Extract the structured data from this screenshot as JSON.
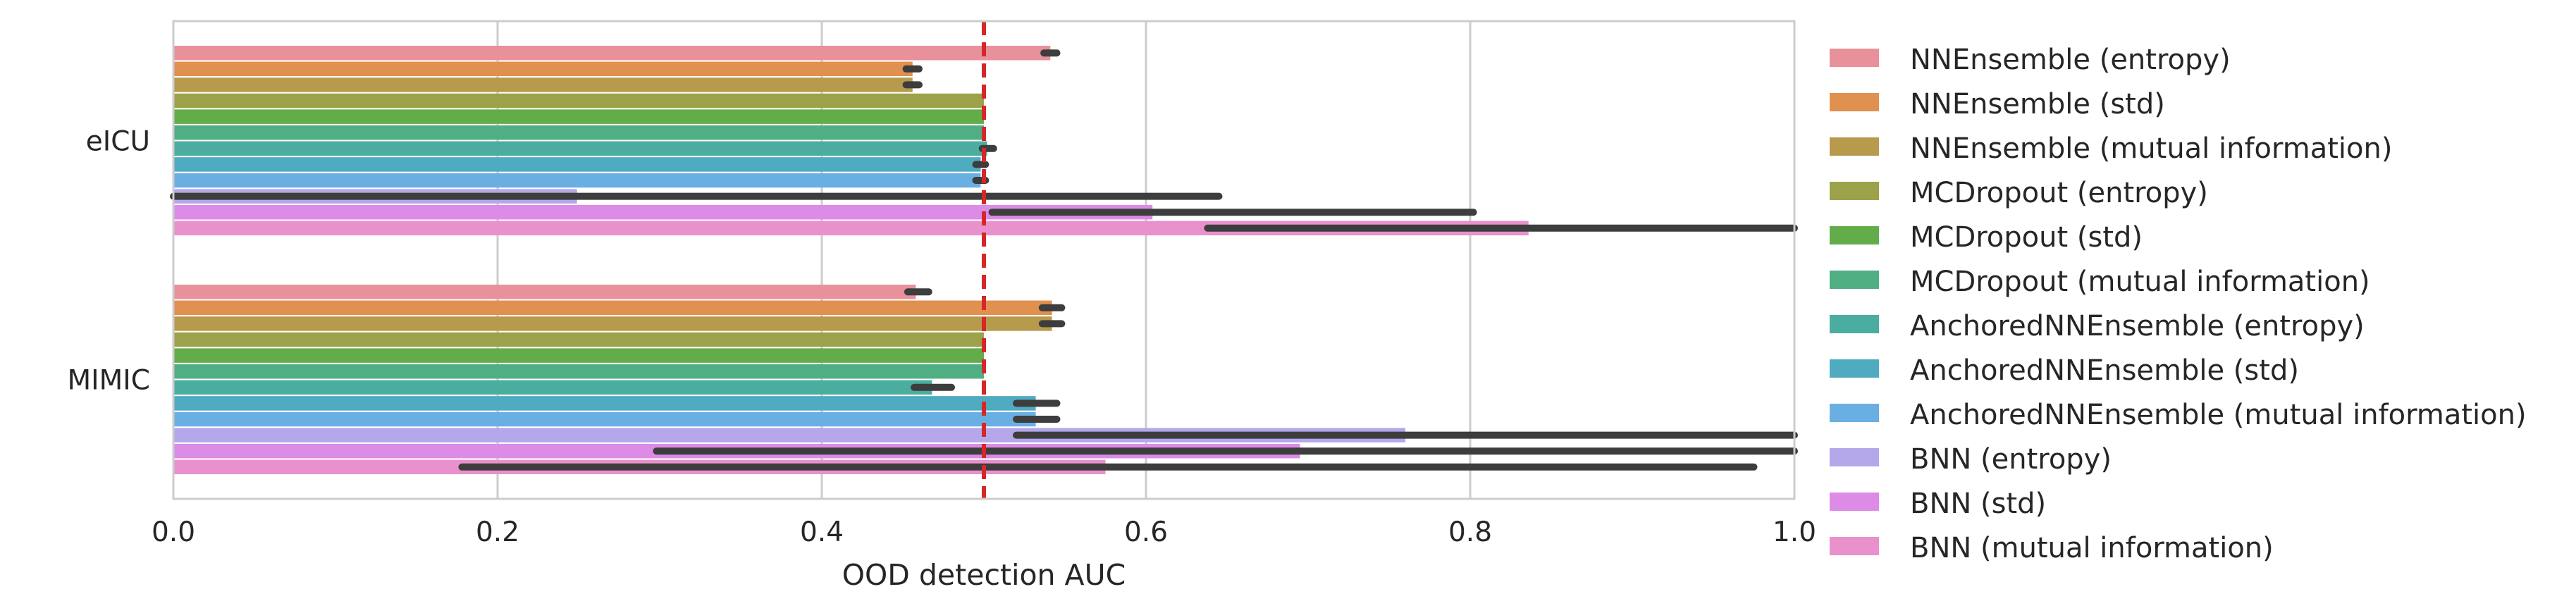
{
  "chart_data": {
    "type": "bar",
    "orientation": "horizontal",
    "title": "",
    "xlabel": "OOD detection AUC",
    "ylabel": "",
    "xlim": [
      0.0,
      1.0
    ],
    "xticks": [
      "0.0",
      "0.2",
      "0.4",
      "0.6",
      "0.8",
      "1.0"
    ],
    "categories": [
      "eICU",
      "MIMIC"
    ],
    "grid": "vertical",
    "legend_position": "right",
    "reference_line": {
      "value": 0.5,
      "style": "dashed",
      "color": "#d62728"
    },
    "series": [
      {
        "name": "NNEnsemble (entropy)",
        "color": "#e8919b",
        "values": [
          0.541,
          0.458
        ],
        "ci": [
          [
            0.537,
            0.545
          ],
          [
            0.453,
            0.466
          ]
        ]
      },
      {
        "name": "NNEnsemble (std)",
        "color": "#e0904f",
        "values": [
          0.456,
          0.542
        ],
        "ci": [
          [
            0.452,
            0.46
          ],
          [
            0.536,
            0.548
          ]
        ]
      },
      {
        "name": "NNEnsemble (mutual information)",
        "color": "#b89a4c",
        "values": [
          0.456,
          0.542
        ],
        "ci": [
          [
            0.452,
            0.46
          ],
          [
            0.536,
            0.548
          ]
        ]
      },
      {
        "name": "MCDropout (entropy)",
        "color": "#9ba24a",
        "values": [
          0.5,
          0.5
        ],
        "ci": [
          [
            0.5,
            0.5
          ],
          [
            0.5,
            0.5
          ]
        ]
      },
      {
        "name": "MCDropout (std)",
        "color": "#62ad4a",
        "values": [
          0.5,
          0.5
        ],
        "ci": [
          [
            0.5,
            0.5
          ],
          [
            0.5,
            0.5
          ]
        ]
      },
      {
        "name": "MCDropout (mutual information)",
        "color": "#4faf83",
        "values": [
          0.5,
          0.5
        ],
        "ci": [
          [
            0.5,
            0.5
          ],
          [
            0.5,
            0.5
          ]
        ]
      },
      {
        "name": "AnchoredNNEnsemble (entropy)",
        "color": "#4aada0",
        "values": [
          0.502,
          0.468
        ],
        "ci": [
          [
            0.499,
            0.506
          ],
          [
            0.457,
            0.48
          ]
        ]
      },
      {
        "name": "AnchoredNNEnsemble (std)",
        "color": "#4fabc0",
        "values": [
          0.498,
          0.532
        ],
        "ci": [
          [
            0.495,
            0.501
          ],
          [
            0.52,
            0.545
          ]
        ]
      },
      {
        "name": "AnchoredNNEnsemble (mutual information)",
        "color": "#6aafe3",
        "values": [
          0.498,
          0.532
        ],
        "ci": [
          [
            0.495,
            0.501
          ],
          [
            0.52,
            0.545
          ]
        ]
      },
      {
        "name": "BNN (entropy)",
        "color": "#b4a7ea",
        "values": [
          0.249,
          0.76
        ],
        "ci": [
          [
            0.0,
            0.645
          ],
          [
            0.52,
            1.0
          ]
        ]
      },
      {
        "name": "BNN (std)",
        "color": "#dc8ce6",
        "values": [
          0.604,
          0.695
        ],
        "ci": [
          [
            0.505,
            0.802
          ],
          [
            0.298,
            1.0
          ]
        ]
      },
      {
        "name": "BNN (mutual information)",
        "color": "#e891cc",
        "values": [
          0.836,
          0.575
        ],
        "ci": [
          [
            0.638,
            1.0
          ],
          [
            0.178,
            0.975
          ]
        ]
      }
    ]
  }
}
